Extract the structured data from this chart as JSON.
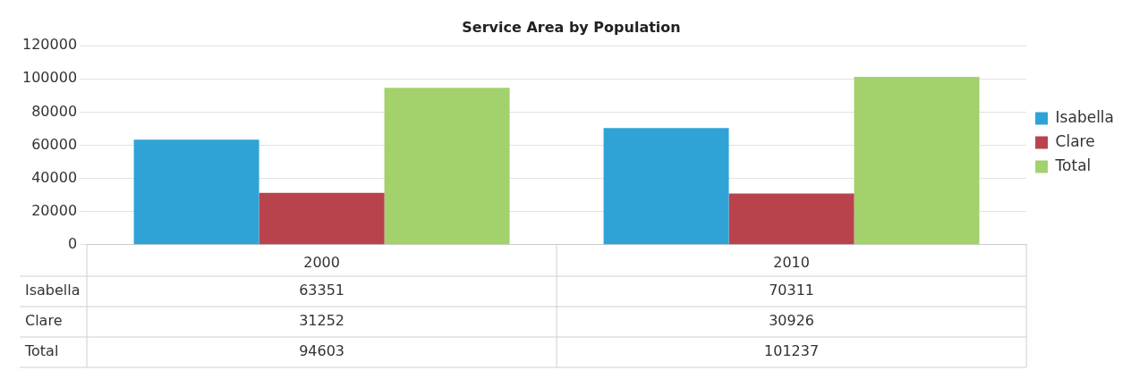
{
  "chart_data": {
    "type": "bar",
    "title": "Service Area by Population",
    "categories": [
      "2000",
      "2010"
    ],
    "series": [
      {
        "name": "Isabella",
        "color": "#2fa3d6",
        "values": [
          63351,
          70311
        ]
      },
      {
        "name": "Clare",
        "color": "#b8434d",
        "values": [
          31252,
          30926
        ]
      },
      {
        "name": "Total",
        "color": "#a3d16b",
        "values": [
          94603,
          101237
        ]
      }
    ],
    "ylim": [
      0,
      120000
    ],
    "yticks": [
      0,
      20000,
      40000,
      60000,
      80000,
      100000,
      120000
    ],
    "grid": "y",
    "legend": "right",
    "data_labels": true
  }
}
